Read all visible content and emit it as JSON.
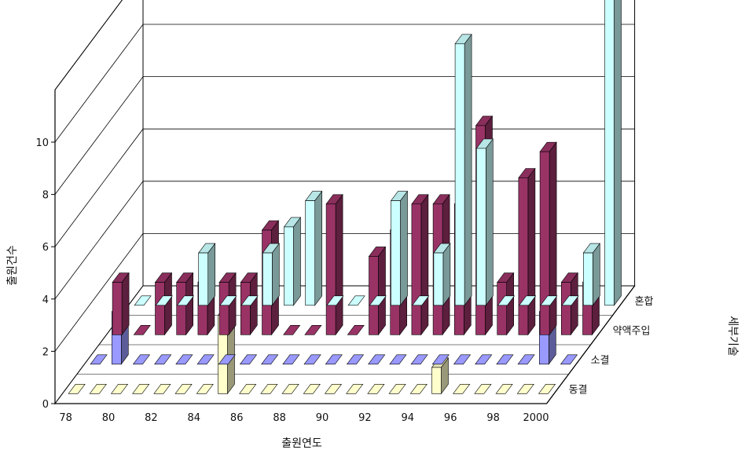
{
  "chart_data": {
    "type": "bar",
    "subtype": "3d-bar",
    "xlabel": "출원연도",
    "ylabel": "출원건수",
    "zlabel": "세부기술",
    "ylim": [
      0,
      12
    ],
    "yticks": [
      0,
      2,
      4,
      6,
      8,
      10
    ],
    "xtick_labels": [
      "78",
      "80",
      "82",
      "84",
      "86",
      "88",
      "90",
      "92",
      "94",
      "96",
      "98",
      "2000"
    ],
    "categories": [
      "78",
      "79",
      "80",
      "81",
      "82",
      "83",
      "84",
      "85",
      "86",
      "87",
      "88",
      "89",
      "90",
      "91",
      "92",
      "93",
      "94",
      "95",
      "96",
      "97",
      "98",
      "99",
      "2000"
    ],
    "grid": true,
    "series": [
      {
        "name": "혼합",
        "color": "#ccffff",
        "values": [
          0,
          0,
          0,
          2,
          0,
          0,
          2,
          3,
          4,
          0,
          0,
          0,
          4,
          0,
          2,
          10,
          6,
          0,
          0,
          0,
          0,
          2,
          12
        ]
      },
      {
        "name": "약액주입",
        "color": "#993366",
        "values": [
          2,
          0,
          2,
          2,
          2,
          2,
          2,
          4,
          0,
          0,
          5,
          0,
          3,
          4,
          5,
          5,
          5,
          8,
          2,
          6,
          7,
          2,
          2
        ]
      },
      {
        "name": "소결",
        "color": "#9999ff",
        "values": [
          0,
          2,
          0,
          0,
          0,
          0,
          0,
          0,
          0,
          0,
          0,
          0,
          0,
          0,
          0,
          0,
          0,
          0,
          0,
          0,
          0,
          2,
          0
        ]
      },
      {
        "name": "동결",
        "color": "#ffffcc",
        "values": [
          0,
          0,
          0,
          0,
          0,
          0,
          0,
          3,
          0,
          0,
          0,
          0,
          0,
          0,
          0,
          0,
          0,
          1,
          0,
          0,
          0,
          0,
          0
        ]
      }
    ]
  }
}
